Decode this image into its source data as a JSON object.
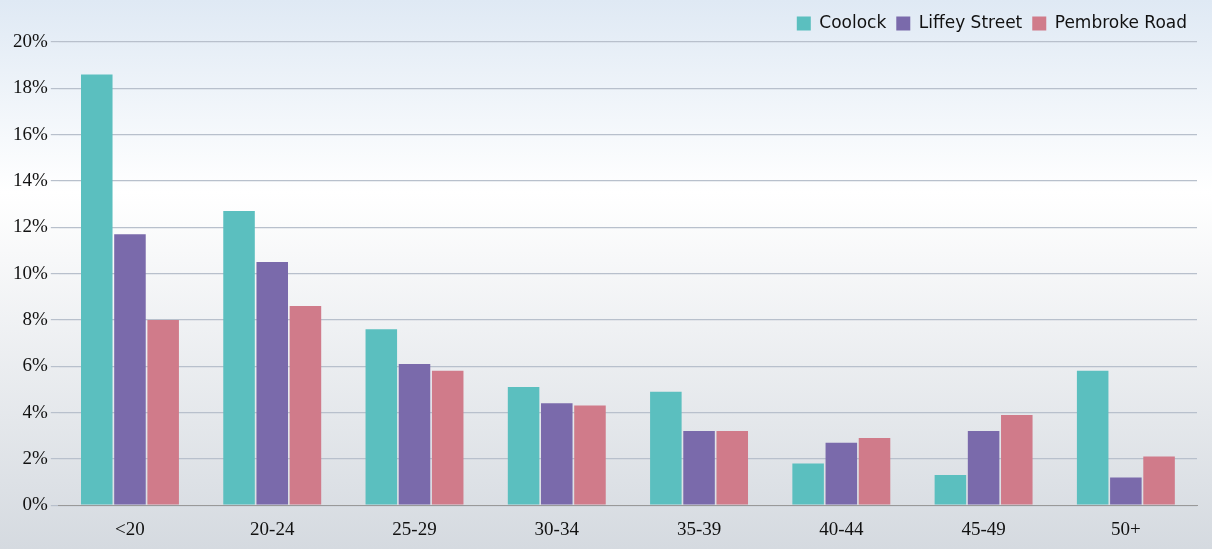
{
  "chart_data": {
    "type": "bar",
    "categories": [
      "<20",
      "20-24",
      "25-29",
      "30-34",
      "35-39",
      "40-44",
      "45-49",
      "50+"
    ],
    "series": [
      {
        "name": "Coolock",
        "color": "#5bbfbf",
        "values": [
          18.6,
          12.7,
          7.6,
          5.1,
          4.9,
          1.8,
          1.3,
          5.8
        ]
      },
      {
        "name": "Liffey Street",
        "color": "#7a6aab",
        "values": [
          11.7,
          10.5,
          6.1,
          4.4,
          3.2,
          2.7,
          3.2,
          1.2
        ]
      },
      {
        "name": "Pembroke Road",
        "color": "#d07b8a",
        "values": [
          8.0,
          8.6,
          5.8,
          4.3,
          3.2,
          2.9,
          3.9,
          2.1
        ]
      }
    ],
    "ylim": [
      0,
      20
    ],
    "yticks": [
      {
        "value": 0,
        "label": "0%"
      },
      {
        "value": 2,
        "label": "2%"
      },
      {
        "value": 4,
        "label": "4%"
      },
      {
        "value": 6,
        "label": "6%"
      },
      {
        "value": 8,
        "label": "8%"
      },
      {
        "value": 10,
        "label": "10%"
      },
      {
        "value": 12,
        "label": "12%"
      },
      {
        "value": 14,
        "label": "14%"
      },
      {
        "value": 16,
        "label": "16%"
      },
      {
        "value": 18,
        "label": "18%"
      },
      {
        "value": 20,
        "label": "20%"
      }
    ],
    "grid": "y",
    "legend": "top right"
  }
}
